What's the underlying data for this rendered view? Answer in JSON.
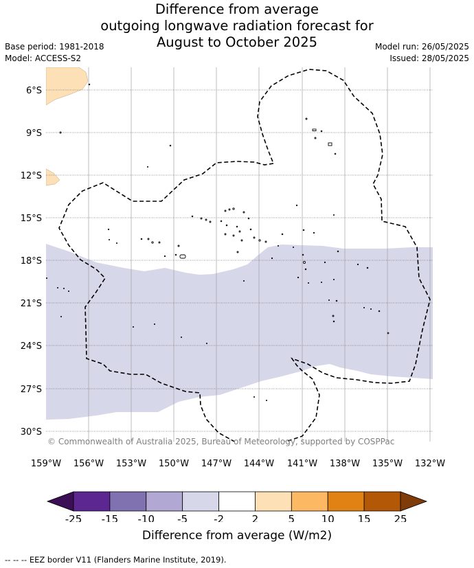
{
  "header": {
    "title_lines": [
      "Difference from average",
      "outgoing longwave radiation forecast for",
      "August to October 2025"
    ],
    "base_period": "Base period: 1981-2018",
    "model": "Model: ACCESS-S2",
    "model_run": "Model run: 26/05/2025",
    "issued": "Issued: 28/05/2025"
  },
  "map": {
    "lon_labels": [
      "159°W",
      "156°W",
      "153°W",
      "150°W",
      "147°W",
      "144°W",
      "141°W",
      "138°W",
      "135°W",
      "132°W"
    ],
    "lat_labels": [
      "6°S",
      "9°S",
      "12°S",
      "15°S",
      "18°S",
      "21°S",
      "24°S",
      "27°S",
      "30°S"
    ],
    "copyright": "© Commonwealth of Australia 2025, Bureau of Meteorology, supported by COSPPac",
    "colors": {
      "light_purple": "#d7d7ea",
      "light_orange": "#fde0b6",
      "grid": "#a0a0a0"
    }
  },
  "colorbar": {
    "tick_labels": [
      "-25",
      "-15",
      "-10",
      "-5",
      "-2",
      "2",
      "5",
      "10",
      "15",
      "25"
    ],
    "colors": [
      "#3c0e55",
      "#5c2790",
      "#8072b1",
      "#b1a8d3",
      "#d7d7ea",
      "#ffffff",
      "#fde0b6",
      "#fdb863",
      "#e08214",
      "#b35806",
      "#7f3b08"
    ],
    "title": "Difference from average (W/m2)"
  },
  "footer": {
    "legend_text": "--  --  -- EEZ border V11 (Flanders Marine Institute, 2019)."
  }
}
